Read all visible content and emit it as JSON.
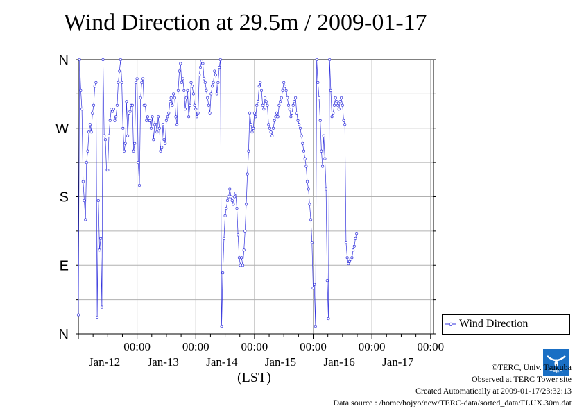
{
  "chart_data": {
    "type": "line",
    "title": "Wind Direction at 29.5m / 2009-01-17",
    "xlabel": "(LST)",
    "ylabel": "",
    "y_ticks": [
      {
        "value": 0,
        "label": "N"
      },
      {
        "value": 90,
        "label": "E"
      },
      {
        "value": 180,
        "label": "S"
      },
      {
        "value": 270,
        "label": "W"
      },
      {
        "value": 360,
        "label": "N"
      }
    ],
    "ylim": [
      0,
      360
    ],
    "xlim_days": [
      11.0,
      17.05
    ],
    "x_ticks": [
      {
        "day": 12,
        "time": "00:00",
        "date": "Jan-12"
      },
      {
        "day": 13,
        "time": "00:00",
        "date": "Jan-13"
      },
      {
        "day": 14,
        "time": "00:00",
        "date": "Jan-14"
      },
      {
        "day": 15,
        "time": "00:00",
        "date": "Jan-15"
      },
      {
        "day": 16,
        "time": "00:00",
        "date": "Jan-16"
      },
      {
        "day": 17,
        "time": "00:00",
        "date": "Jan-17"
      }
    ],
    "grid": true,
    "legend_position": "right",
    "series": [
      {
        "name": "Wind Direction",
        "color": "#3333dd",
        "points": [
          [
            11.0,
            25
          ],
          [
            11.02,
            360
          ],
          [
            11.04,
            320
          ],
          [
            11.06,
            295
          ],
          [
            11.08,
            200
          ],
          [
            11.1,
            175
          ],
          [
            11.12,
            150
          ],
          [
            11.14,
            225
          ],
          [
            11.16,
            240
          ],
          [
            11.18,
            265
          ],
          [
            11.2,
            275
          ],
          [
            11.22,
            265
          ],
          [
            11.24,
            290
          ],
          [
            11.26,
            300
          ],
          [
            11.28,
            325
          ],
          [
            11.3,
            330
          ],
          [
            11.32,
            22
          ],
          [
            11.34,
            175
          ],
          [
            11.36,
            110
          ],
          [
            11.38,
            125
          ],
          [
            11.4,
            35
          ],
          [
            11.42,
            360
          ],
          [
            11.44,
            260
          ],
          [
            11.46,
            255
          ],
          [
            11.48,
            215
          ],
          [
            11.5,
            215
          ],
          [
            11.52,
            260
          ],
          [
            11.54,
            280
          ],
          [
            11.56,
            295
          ],
          [
            11.58,
            292
          ],
          [
            11.6,
            295
          ],
          [
            11.62,
            280
          ],
          [
            11.64,
            285
          ],
          [
            11.66,
            300
          ],
          [
            11.68,
            330
          ],
          [
            11.7,
            345
          ],
          [
            11.72,
            360
          ],
          [
            11.74,
            330
          ],
          [
            11.76,
            270
          ],
          [
            11.78,
            240
          ],
          [
            11.8,
            250
          ],
          [
            11.82,
            305
          ],
          [
            11.84,
            260
          ],
          [
            11.86,
            290
          ],
          [
            11.88,
            292
          ],
          [
            11.9,
            300
          ],
          [
            11.92,
            300
          ],
          [
            11.94,
            240
          ],
          [
            11.96,
            250
          ],
          [
            11.98,
            330
          ],
          [
            12.0,
            335
          ],
          [
            12.02,
            225
          ],
          [
            12.04,
            195
          ],
          [
            12.06,
            310
          ],
          [
            12.08,
            330
          ],
          [
            12.1,
            335
          ],
          [
            12.12,
            300
          ],
          [
            12.14,
            300
          ],
          [
            12.16,
            280
          ],
          [
            12.18,
            285
          ],
          [
            12.2,
            280
          ],
          [
            12.22,
            280
          ],
          [
            12.24,
            270
          ],
          [
            12.26,
            285
          ],
          [
            12.28,
            255
          ],
          [
            12.3,
            275
          ],
          [
            12.32,
            278
          ],
          [
            12.34,
            265
          ],
          [
            12.36,
            285
          ],
          [
            12.38,
            270
          ],
          [
            12.4,
            240
          ],
          [
            12.42,
            245
          ],
          [
            12.44,
            275
          ],
          [
            12.46,
            255
          ],
          [
            12.48,
            250
          ],
          [
            12.5,
            280
          ],
          [
            12.52,
            285
          ],
          [
            12.54,
            290
          ],
          [
            12.56,
            305
          ],
          [
            12.58,
            310
          ],
          [
            12.6,
            300
          ],
          [
            12.62,
            315
          ],
          [
            12.64,
            310
          ],
          [
            12.66,
            285
          ],
          [
            12.68,
            275
          ],
          [
            12.7,
            320
          ],
          [
            12.72,
            345
          ],
          [
            12.74,
            355
          ],
          [
            12.76,
            330
          ],
          [
            12.78,
            335
          ],
          [
            12.8,
            320
          ],
          [
            12.82,
            295
          ],
          [
            12.84,
            310
          ],
          [
            12.86,
            320
          ],
          [
            12.88,
            285
          ],
          [
            12.9,
            300
          ],
          [
            12.92,
            330
          ],
          [
            12.94,
            325
          ],
          [
            12.96,
            315
          ],
          [
            12.98,
            300
          ],
          [
            13.0,
            295
          ],
          [
            13.02,
            285
          ],
          [
            13.04,
            290
          ],
          [
            13.06,
            340
          ],
          [
            13.08,
            350
          ],
          [
            13.1,
            358
          ],
          [
            13.12,
            355
          ],
          [
            13.14,
            335
          ],
          [
            13.16,
            330
          ],
          [
            13.18,
            320
          ],
          [
            13.2,
            310
          ],
          [
            13.22,
            300
          ],
          [
            13.24,
            290
          ],
          [
            13.26,
            315
          ],
          [
            13.28,
            325
          ],
          [
            13.3,
            330
          ],
          [
            13.32,
            345
          ],
          [
            13.34,
            340
          ],
          [
            13.36,
            315
          ],
          [
            13.38,
            330
          ],
          [
            13.4,
            350
          ],
          [
            13.42,
            360
          ],
          [
            13.44,
            10
          ],
          [
            13.46,
            80
          ],
          [
            13.48,
            125
          ],
          [
            13.5,
            155
          ],
          [
            13.52,
            165
          ],
          [
            13.54,
            175
          ],
          [
            13.56,
            180
          ],
          [
            13.58,
            190
          ],
          [
            13.6,
            180
          ],
          [
            13.62,
            175
          ],
          [
            13.64,
            170
          ],
          [
            13.66,
            180
          ],
          [
            13.68,
            185
          ],
          [
            13.7,
            165
          ],
          [
            13.72,
            130
          ],
          [
            13.74,
            100
          ],
          [
            13.76,
            90
          ],
          [
            13.78,
            100
          ],
          [
            13.8,
            90
          ],
          [
            13.82,
            110
          ],
          [
            13.84,
            135
          ],
          [
            13.86,
            170
          ],
          [
            13.88,
            210
          ],
          [
            13.9,
            240
          ],
          [
            13.92,
            290
          ],
          [
            13.94,
            275
          ],
          [
            13.96,
            265
          ],
          [
            13.98,
            270
          ],
          [
            14.0,
            290
          ],
          [
            14.02,
            285
          ],
          [
            14.04,
            300
          ],
          [
            14.06,
            305
          ],
          [
            14.08,
            325
          ],
          [
            14.1,
            330
          ],
          [
            14.12,
            320
          ],
          [
            14.14,
            300
          ],
          [
            14.16,
            295
          ],
          [
            14.18,
            310
          ],
          [
            14.2,
            305
          ],
          [
            14.22,
            300
          ],
          [
            14.24,
            275
          ],
          [
            14.26,
            270
          ],
          [
            14.28,
            265
          ],
          [
            14.3,
            260
          ],
          [
            14.32,
            270
          ],
          [
            14.34,
            280
          ],
          [
            14.36,
            285
          ],
          [
            14.38,
            290
          ],
          [
            14.4,
            285
          ],
          [
            14.42,
            300
          ],
          [
            14.44,
            305
          ],
          [
            14.46,
            310
          ],
          [
            14.48,
            320
          ],
          [
            14.5,
            330
          ],
          [
            14.52,
            325
          ],
          [
            14.54,
            320
          ],
          [
            14.56,
            310
          ],
          [
            14.58,
            300
          ],
          [
            14.6,
            295
          ],
          [
            14.62,
            285
          ],
          [
            14.64,
            290
          ],
          [
            14.66,
            300
          ],
          [
            14.68,
            305
          ],
          [
            14.7,
            310
          ],
          [
            14.72,
            290
          ],
          [
            14.74,
            280
          ],
          [
            14.76,
            275
          ],
          [
            14.78,
            270
          ],
          [
            14.8,
            260
          ],
          [
            14.82,
            250
          ],
          [
            14.84,
            240
          ],
          [
            14.86,
            230
          ],
          [
            14.88,
            220
          ],
          [
            14.9,
            200
          ],
          [
            14.92,
            190
          ],
          [
            14.94,
            170
          ],
          [
            14.96,
            150
          ],
          [
            14.98,
            120
          ],
          [
            15.0,
            60
          ],
          [
            15.02,
            65
          ],
          [
            15.04,
            10
          ],
          [
            15.06,
            360
          ],
          [
            15.08,
            330
          ],
          [
            15.1,
            310
          ],
          [
            15.12,
            280
          ],
          [
            15.14,
            240
          ],
          [
            15.16,
            220
          ],
          [
            15.18,
            260
          ],
          [
            15.2,
            230
          ],
          [
            15.22,
            190
          ],
          [
            15.24,
            70
          ],
          [
            15.26,
            20
          ],
          [
            15.28,
            360
          ],
          [
            15.3,
            320
          ],
          [
            15.32,
            285
          ],
          [
            15.34,
            290
          ],
          [
            15.36,
            300
          ],
          [
            15.38,
            310
          ],
          [
            15.4,
            305
          ],
          [
            15.42,
            300
          ],
          [
            15.44,
            295
          ],
          [
            15.46,
            305
          ],
          [
            15.48,
            310
          ],
          [
            15.5,
            300
          ],
          [
            15.52,
            280
          ],
          [
            15.54,
            275
          ],
          [
            15.56,
            120
          ],
          [
            15.58,
            100
          ],
          [
            15.6,
            92
          ],
          [
            15.62,
            95
          ],
          [
            15.64,
            98
          ],
          [
            15.66,
            100
          ],
          [
            15.68,
            110
          ],
          [
            15.7,
            115
          ],
          [
            15.72,
            125
          ],
          [
            15.74,
            132
          ]
        ]
      }
    ]
  },
  "legend": {
    "label": "Wind Direction"
  },
  "credits": {
    "line1": "©TERC, Univ. Tsukuba",
    "line2": "Observed at TERC Tower site",
    "line3": "Created Automatically at 2009-01-17/23:32:13",
    "line4": "Data source : /home/hojyo/new/TERC-data/sorted_data/FLUX.30m.dat"
  },
  "logo": {
    "text": "TERC"
  }
}
